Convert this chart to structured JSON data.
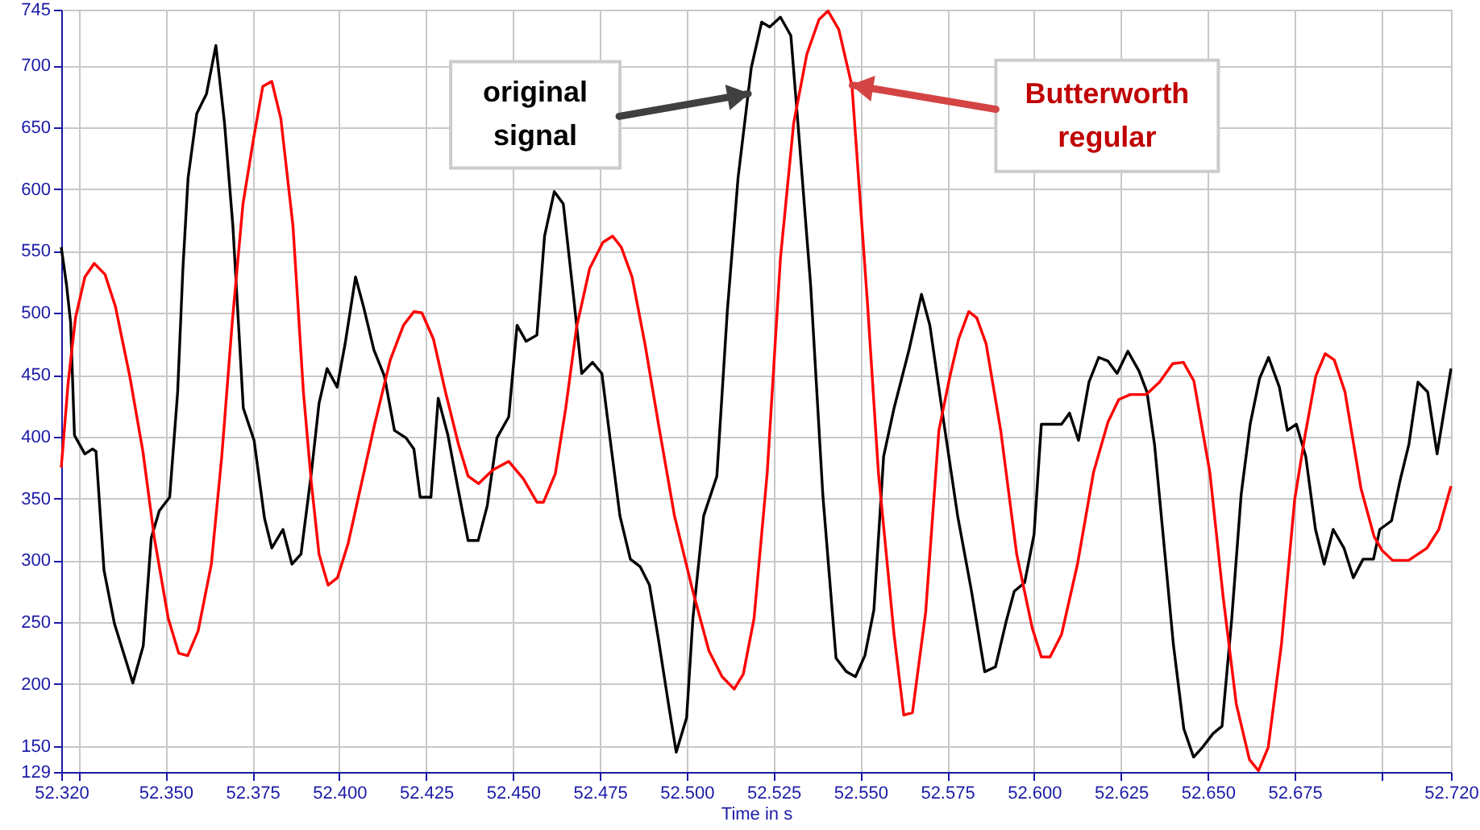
{
  "chart_data": {
    "type": "line",
    "xlabel": "Time in s",
    "grid": true,
    "xlim": [
      52.32,
      52.72
    ],
    "ylim": [
      129,
      745
    ],
    "xticks": [
      {
        "value": 52.32,
        "label": "52.320"
      },
      {
        "value": 52.325,
        "label": null
      },
      {
        "value": 52.35,
        "label": "52.350"
      },
      {
        "value": 52.375,
        "label": "52.375"
      },
      {
        "value": 52.4,
        "label": "52.400"
      },
      {
        "value": 52.425,
        "label": "52.425"
      },
      {
        "value": 52.45,
        "label": "52.450"
      },
      {
        "value": 52.475,
        "label": "52.475"
      },
      {
        "value": 52.5,
        "label": "52.500"
      },
      {
        "value": 52.525,
        "label": "52.525"
      },
      {
        "value": 52.55,
        "label": "52.550"
      },
      {
        "value": 52.575,
        "label": "52.575"
      },
      {
        "value": 52.6,
        "label": "52.600"
      },
      {
        "value": 52.625,
        "label": "52.625"
      },
      {
        "value": 52.65,
        "label": "52.650"
      },
      {
        "value": 52.675,
        "label": "52.675"
      },
      {
        "value": 52.7,
        "label": null
      },
      {
        "value": 52.72,
        "label": "52.720"
      }
    ],
    "yticks": [
      129,
      150,
      200,
      250,
      300,
      350,
      400,
      450,
      500,
      550,
      600,
      650,
      700,
      745
    ],
    "annotations": [
      {
        "text": "original signal",
        "x": 52.5177,
        "y": 677
      },
      {
        "text": "Butterworth regular",
        "x": 52.5477,
        "y": 684
      }
    ],
    "series": [
      {
        "color": "#000000",
        "x": [
          52.32,
          52.3215,
          52.3227,
          52.3238,
          52.3268,
          52.329,
          52.33,
          52.3323,
          52.3353,
          52.3406,
          52.3436,
          52.3459,
          52.3482,
          52.3512,
          52.3535,
          52.355,
          52.3565,
          52.359,
          52.3618,
          52.3645,
          52.367,
          52.3694,
          52.3724,
          52.3755,
          52.3785,
          52.3806,
          52.3838,
          52.3864,
          52.389,
          52.392,
          52.3942,
          52.3965,
          52.3994,
          52.4017,
          52.4047,
          52.407,
          52.41,
          52.413,
          52.4159,
          52.4192,
          52.4215,
          52.4233,
          52.4264,
          52.4285,
          52.4313,
          52.4342,
          52.4371,
          52.44,
          52.4426,
          52.4454,
          52.4488,
          52.4512,
          52.4538,
          52.4569,
          52.4591,
          52.4619,
          52.4645,
          52.4675,
          52.4698,
          52.4729,
          52.4756,
          52.4782,
          52.4808,
          52.4838,
          52.4866,
          52.4893,
          52.4919,
          52.495,
          52.497,
          52.5,
          52.5018,
          52.5049,
          52.5087,
          52.5117,
          52.5148,
          52.5186,
          52.5216,
          52.5239,
          52.527,
          52.53,
          52.5323,
          52.5357,
          52.5392,
          52.543,
          52.546,
          52.5486,
          52.5513,
          52.5539,
          52.5567,
          52.5597,
          52.564,
          52.5676,
          52.57,
          52.5741,
          52.578,
          52.582,
          52.5858,
          52.5889,
          52.592,
          52.5943,
          52.5973,
          52.6,
          52.6021,
          52.6079,
          52.6102,
          52.6128,
          52.6158,
          52.6186,
          52.6213,
          52.6239,
          52.627,
          52.6302,
          52.6325,
          52.6347,
          52.6378,
          52.6401,
          52.6431,
          52.6459,
          52.6485,
          52.6515,
          52.6541,
          52.6569,
          52.6596,
          52.6622,
          52.6649,
          52.6675,
          52.6706,
          52.6729,
          52.6755,
          52.6782,
          52.681,
          52.6835,
          52.6861,
          52.6892,
          52.6919,
          52.6947,
          52.6977,
          52.6995,
          52.7029,
          52.7053,
          52.7079,
          52.7105,
          52.7133,
          52.716,
          52.72
        ],
        "values": [
          553,
          523,
          492,
          401,
          386,
          390,
          388,
          292,
          249,
          201,
          231,
          318,
          340,
          351,
          436,
          535,
          609,
          661,
          677,
          716,
          653,
          570,
          423,
          397,
          334,
          310,
          325,
          297,
          305,
          371,
          427,
          455,
          440,
          475,
          529,
          505,
          470,
          449,
          405,
          399,
          390,
          351,
          351,
          431,
          401,
          358,
          316,
          316,
          344,
          399,
          416,
          490,
          477,
          482,
          562,
          598,
          588,
          512,
          451,
          460,
          451,
          393,
          336,
          301,
          295,
          280,
          236,
          180,
          145,
          173,
          253,
          336,
          368,
          501,
          609,
          698,
          735,
          731,
          739,
          724,
          644,
          522,
          353,
          221,
          210,
          206,
          223,
          260,
          384,
          423,
          470,
          515,
          490,
          410,
          336,
          275,
          210,
          214,
          251,
          275,
          282,
          321,
          410,
          410,
          419,
          397,
          444,
          464,
          461,
          451,
          469,
          453,
          436,
          393,
          301,
          232,
          164,
          141,
          149,
          160,
          166,
          253,
          353,
          410,
          447,
          464,
          440,
          405,
          410,
          384,
          325,
          297,
          325,
          310,
          286,
          301,
          301,
          325,
          332,
          364,
          394,
          444,
          436,
          386,
          455
        ]
      },
      {
        "color": "#ff0000",
        "x": [
          52.32,
          52.322,
          52.3241,
          52.3268,
          52.3295,
          52.3326,
          52.3356,
          52.3397,
          52.3435,
          52.3468,
          52.3508,
          52.3538,
          52.3564,
          52.3594,
          52.3632,
          52.3662,
          52.3692,
          52.3723,
          52.3753,
          52.378,
          52.3806,
          52.3832,
          52.3867,
          52.3897,
          52.392,
          52.3942,
          52.3968,
          52.3995,
          52.4026,
          52.4064,
          52.4102,
          52.4147,
          52.4185,
          52.4215,
          52.4238,
          52.4271,
          52.4306,
          52.4344,
          52.4371,
          52.4401,
          52.4442,
          52.4488,
          52.453,
          52.4569,
          52.4588,
          52.4622,
          52.4652,
          52.4683,
          52.4721,
          52.4759,
          52.4787,
          52.4812,
          52.4843,
          52.488,
          52.4919,
          52.4965,
          52.5018,
          52.5064,
          52.5102,
          52.5137,
          52.5163,
          52.5194,
          52.5232,
          52.527,
          52.5308,
          52.5346,
          52.5381,
          52.5407,
          52.5438,
          52.5476,
          52.552,
          52.5552,
          52.5597,
          52.5625,
          52.565,
          52.5688,
          52.5726,
          52.5758,
          52.5783,
          52.5812,
          52.5835,
          52.5862,
          52.5904,
          52.595,
          52.5995,
          52.6021,
          52.6046,
          52.6079,
          52.6125,
          52.6171,
          52.6213,
          52.6244,
          52.6277,
          52.6323,
          52.6361,
          52.6399,
          52.643,
          52.646,
          52.6506,
          52.6544,
          52.6582,
          52.662,
          52.6646,
          52.6674,
          52.6712,
          52.675,
          52.678,
          52.6811,
          52.6838,
          52.6864,
          52.6895,
          52.6941,
          52.6979,
          52.7002,
          52.7032,
          52.7078,
          52.7131,
          52.7165,
          52.72
        ],
        "values": [
          375,
          444,
          496,
          529,
          540,
          531,
          505,
          449,
          388,
          318,
          253,
          225,
          223,
          243,
          297,
          384,
          492,
          588,
          640,
          683,
          687,
          657,
          570,
          436,
          362,
          305,
          280,
          286,
          314,
          362,
          410,
          462,
          490,
          501,
          500,
          479,
          436,
          393,
          368,
          362,
          373,
          380,
          366,
          347,
          347,
          370,
          423,
          488,
          536,
          557,
          562,
          553,
          529,
          475,
          410,
          336,
          275,
          227,
          206,
          196,
          208,
          253,
          371,
          544,
          653,
          709,
          737,
          744,
          729,
          683,
          510,
          371,
          240,
          175,
          177,
          258,
          405,
          449,
          479,
          501,
          496,
          475,
          405,
          305,
          245,
          222,
          222,
          240,
          297,
          371,
          412,
          430,
          434,
          434,
          444,
          459,
          460,
          445,
          371,
          271,
          184,
          139,
          130,
          149,
          232,
          349,
          401,
          449,
          467,
          462,
          436,
          358,
          319,
          308,
          300,
          300,
          310,
          325,
          360
        ]
      }
    ]
  }
}
